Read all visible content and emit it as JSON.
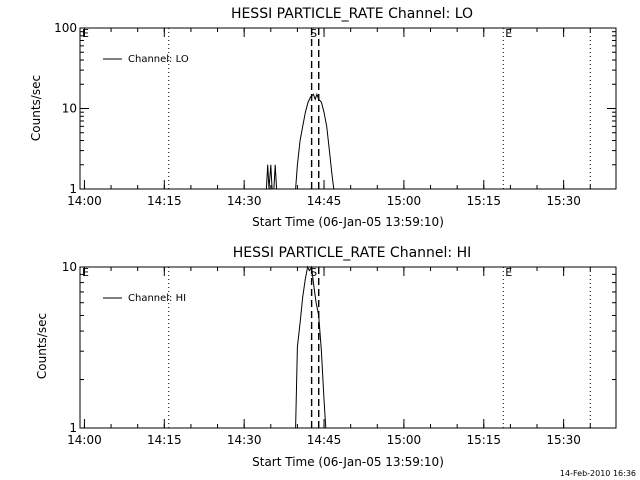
{
  "footer": {
    "timestamp": "14-Feb-2010 16:36"
  },
  "chart_data": [
    {
      "type": "line",
      "title": "HESSI PARTICLE_RATE Channel: LO",
      "xlabel": "Start Time (06-Jan-05 13:59:10)",
      "ylabel": "Counts/sec",
      "y_scale": "log",
      "ylim": [
        1,
        100
      ],
      "yticks": [
        1,
        10,
        100
      ],
      "ytick_labels": [
        "1",
        "10",
        "100"
      ],
      "xlim": [
        "13:59:10",
        "15:39:50"
      ],
      "xticks": [
        "14:00",
        "14:15",
        "14:30",
        "14:45",
        "15:00",
        "15:15",
        "15:30"
      ],
      "legend": {
        "label": "Channel: LO",
        "position": "top-left"
      },
      "markers": [
        {
          "label": "E",
          "time": "13:59:10",
          "style": "dotted"
        },
        {
          "label": "",
          "time": "14:15:50",
          "style": "dotted"
        },
        {
          "label": "S",
          "time": "14:42:40",
          "style": "dashed"
        },
        {
          "label": "",
          "time": "14:44:00",
          "style": "dashed"
        },
        {
          "label": "E",
          "time": "15:18:40",
          "style": "dotted"
        },
        {
          "label": "",
          "time": "15:35:00",
          "style": "dotted"
        }
      ],
      "series": [
        {
          "color": "#000000",
          "points": [
            [
              "14:34:10",
              1
            ],
            [
              "14:34:25",
              2
            ],
            [
              "14:34:40",
              1
            ],
            [
              "14:35:00",
              2
            ],
            [
              "14:35:15",
              1
            ],
            [
              "14:35:35",
              1
            ],
            [
              "14:35:50",
              2
            ],
            [
              "14:36:05",
              1
            ],
            [
              "14:39:40",
              1
            ],
            [
              "14:40:00",
              2
            ],
            [
              "14:40:30",
              4
            ],
            [
              "14:41:00",
              6
            ],
            [
              "14:41:30",
              9
            ],
            [
              "14:42:00",
              12
            ],
            [
              "14:42:30",
              14
            ],
            [
              "14:43:00",
              15
            ],
            [
              "14:43:20",
              13
            ],
            [
              "14:43:40",
              15
            ],
            [
              "14:44:00",
              13
            ],
            [
              "14:44:30",
              12
            ],
            [
              "14:45:00",
              9
            ],
            [
              "14:45:30",
              6
            ],
            [
              "14:46:00",
              3
            ],
            [
              "14:46:30",
              1.5
            ],
            [
              "14:46:50",
              1
            ]
          ]
        }
      ]
    },
    {
      "type": "line",
      "title": "HESSI PARTICLE_RATE Channel: HI",
      "xlabel": "Start Time (06-Jan-05 13:59:10)",
      "ylabel": "Counts/sec",
      "y_scale": "log",
      "ylim": [
        1,
        10
      ],
      "yticks": [
        1,
        10
      ],
      "ytick_labels": [
        "1",
        "10"
      ],
      "xlim": [
        "13:59:10",
        "15:39:50"
      ],
      "xticks": [
        "14:00",
        "14:15",
        "14:30",
        "14:45",
        "15:00",
        "15:15",
        "15:30"
      ],
      "legend": {
        "label": "Channel: HI",
        "position": "top-left"
      },
      "markers": [
        {
          "label": "E",
          "time": "13:59:10",
          "style": "dotted"
        },
        {
          "label": "",
          "time": "14:15:50",
          "style": "dotted"
        },
        {
          "label": "S",
          "time": "14:42:40",
          "style": "dashed"
        },
        {
          "label": "",
          "time": "14:44:00",
          "style": "dashed"
        },
        {
          "label": "E",
          "time": "15:18:40",
          "style": "dotted"
        },
        {
          "label": "",
          "time": "15:35:00",
          "style": "dotted"
        }
      ],
      "series": [
        {
          "color": "#000000",
          "points": [
            [
              "14:39:40",
              1
            ],
            [
              "14:40:00",
              3.2
            ],
            [
              "14:40:30",
              4.5
            ],
            [
              "14:41:00",
              6.5
            ],
            [
              "14:41:30",
              8.5
            ],
            [
              "14:41:55",
              10
            ],
            [
              "14:42:15",
              9.5
            ],
            [
              "14:42:40",
              10
            ],
            [
              "14:43:00",
              8
            ],
            [
              "14:43:30",
              6
            ],
            [
              "14:44:00",
              5
            ],
            [
              "14:44:30",
              3
            ],
            [
              "14:45:00",
              1.5
            ],
            [
              "14:45:20",
              1
            ]
          ]
        }
      ]
    }
  ]
}
